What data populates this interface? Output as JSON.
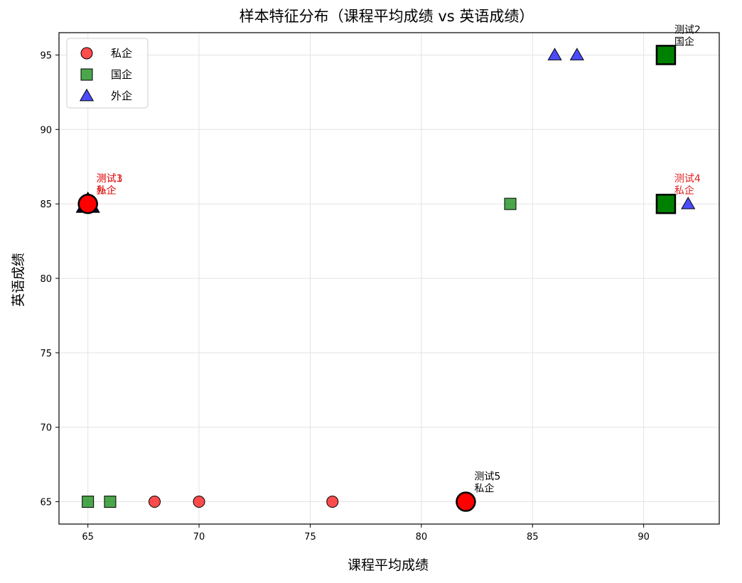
{
  "chart_data": {
    "type": "scatter",
    "title": "样本特征分布（课程平均成绩 vs 英语成绩）",
    "xlabel": "课程平均成绩",
    "ylabel": "英语成绩",
    "xlim": [
      63.7,
      93.4
    ],
    "ylim": [
      63.5,
      96.5
    ],
    "xticks": [
      "65",
      "70",
      "75",
      "80",
      "85",
      "90"
    ],
    "yticks": [
      "65",
      "70",
      "75",
      "80",
      "85",
      "90",
      "95"
    ],
    "grid": true,
    "legend_position": "top-left",
    "series": [
      {
        "name": "私企",
        "marker": "circle",
        "color": "#ff0000",
        "points": [
          [
            65,
            85
          ],
          [
            68,
            65
          ],
          [
            70,
            65
          ],
          [
            76,
            65
          ],
          [
            82,
            65
          ]
        ]
      },
      {
        "name": "国企",
        "marker": "square",
        "color": "#008000",
        "points": [
          [
            65,
            65
          ],
          [
            66,
            65
          ],
          [
            84,
            85
          ],
          [
            91,
            95
          ],
          [
            91,
            85
          ]
        ]
      },
      {
        "name": "外企",
        "marker": "triangle",
        "color": "#0000ff",
        "points": [
          [
            65,
            85
          ],
          [
            86,
            95
          ],
          [
            87,
            95
          ],
          [
            92,
            85
          ]
        ]
      }
    ],
    "test_points": [
      {
        "x": 65,
        "y": 85,
        "marker": "triangle",
        "color": "#0000ff",
        "label_line1": "测试1",
        "label_line2": "外企",
        "label_color": "#e02020"
      },
      {
        "x": 91,
        "y": 95,
        "marker": "square",
        "color": "#008000",
        "label_line1": "测试2",
        "label_line2": "国企",
        "label_color": "#000000"
      },
      {
        "x": 65,
        "y": 85,
        "marker": "circle",
        "color": "#ff0000",
        "label_line1": "测试3",
        "label_line2": "私企",
        "label_color": "#e02020"
      },
      {
        "x": 91,
        "y": 85,
        "marker": "square",
        "color": "#008000",
        "label_line1": "测试4",
        "label_line2": "私企",
        "label_color": "#e02020"
      },
      {
        "x": 82,
        "y": 65,
        "marker": "circle",
        "color": "#ff0000",
        "label_line1": "测试5",
        "label_line2": "私企",
        "label_color": "#000000"
      }
    ]
  }
}
